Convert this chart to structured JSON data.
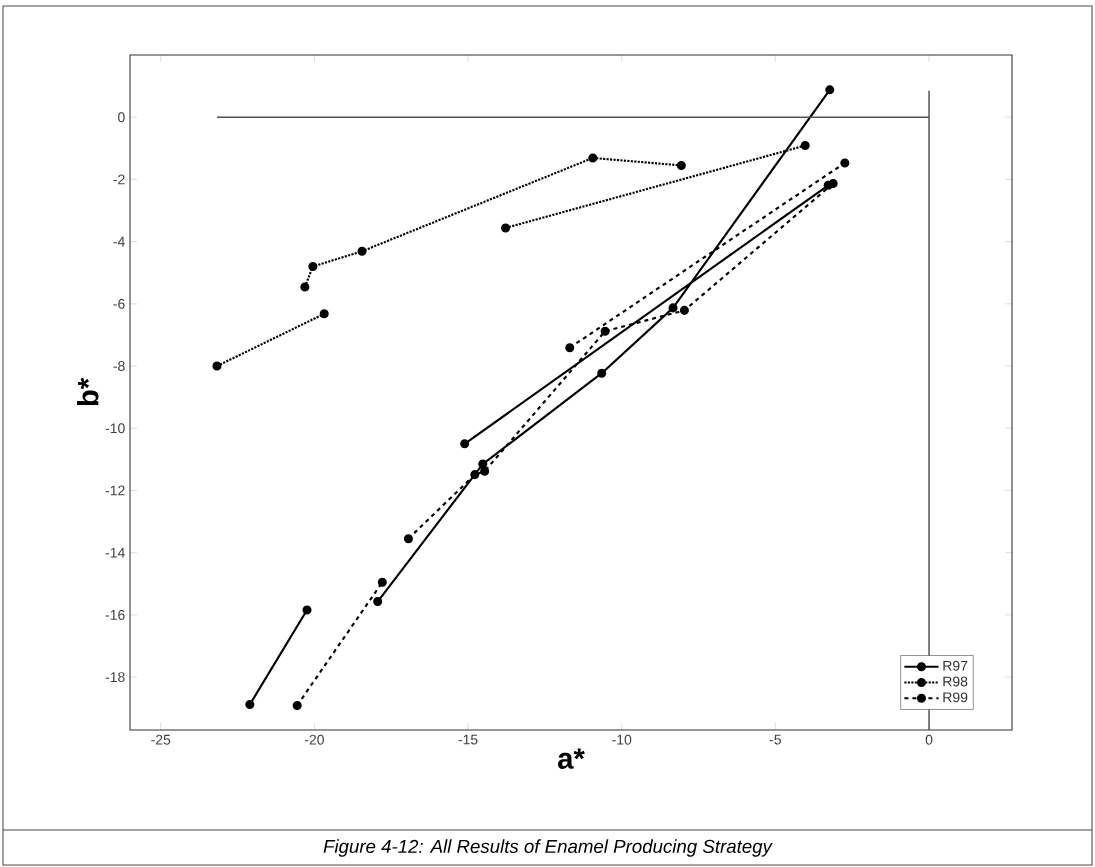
{
  "chart_data": {
    "type": "line",
    "xlabel": "a*",
    "ylabel": "b*",
    "xlim": [
      -26,
      2.7
    ],
    "ylim": [
      -19.7,
      2
    ],
    "xticks": [
      -25,
      -20,
      -15,
      -10,
      -5,
      0
    ],
    "yticks": [
      -18,
      -16,
      -14,
      -12,
      -10,
      -8,
      -6,
      -4,
      -2,
      0
    ],
    "marker": "circle",
    "legend": "bottom right",
    "series": [
      {
        "name": "R97",
        "color": "#000000",
        "line_style": "solid",
        "x": [
          -22.1,
          -20.24,
          null,
          -17.94,
          -14.52,
          -10.65,
          -8.33,
          -3.23,
          null,
          -15.11,
          -3.28
        ],
        "values": [
          -18.88,
          -15.84,
          null,
          -15.57,
          -11.15,
          -8.23,
          -6.13,
          0.88,
          null,
          -10.5,
          -2.19
        ]
      },
      {
        "name": "R98",
        "color": "#000000",
        "line_style": "dotted",
        "x": [
          -23.17,
          -19.68,
          null,
          -20.31,
          -20.05,
          -18.45,
          -10.94,
          -8.06,
          null,
          -13.78,
          -4.03
        ],
        "values": [
          -8.0,
          -6.32,
          null,
          -5.46,
          -4.8,
          -4.31,
          -1.31,
          -1.55,
          null,
          -3.56,
          -0.91
        ]
      },
      {
        "name": "R99",
        "color": "#000000",
        "line_style": "dashed",
        "x": [
          -20.56,
          -17.79,
          null,
          -16.94,
          -14.78,
          -14.46,
          -10.54,
          -7.96,
          -3.12,
          null,
          -11.69,
          -2.74
        ],
        "values": [
          -18.91,
          -14.95,
          null,
          -13.55,
          -11.49,
          -11.38,
          -6.88,
          -6.21,
          -2.13,
          null,
          -7.41,
          -1.47
        ]
      },
      {
        "color": "#505050",
        "line_style": "solid",
        "marker": "none",
        "x": [
          -23.17,
          0
        ],
        "values": [
          0,
          0
        ]
      },
      {
        "color": "#505050",
        "line_style": "solid",
        "marker": "none",
        "x": [
          0,
          0
        ],
        "values": [
          0.85,
          -19.7
        ]
      }
    ],
    "annotations": [
      "Figure 4-12: All Results of Enamel Producing Strategy"
    ]
  }
}
